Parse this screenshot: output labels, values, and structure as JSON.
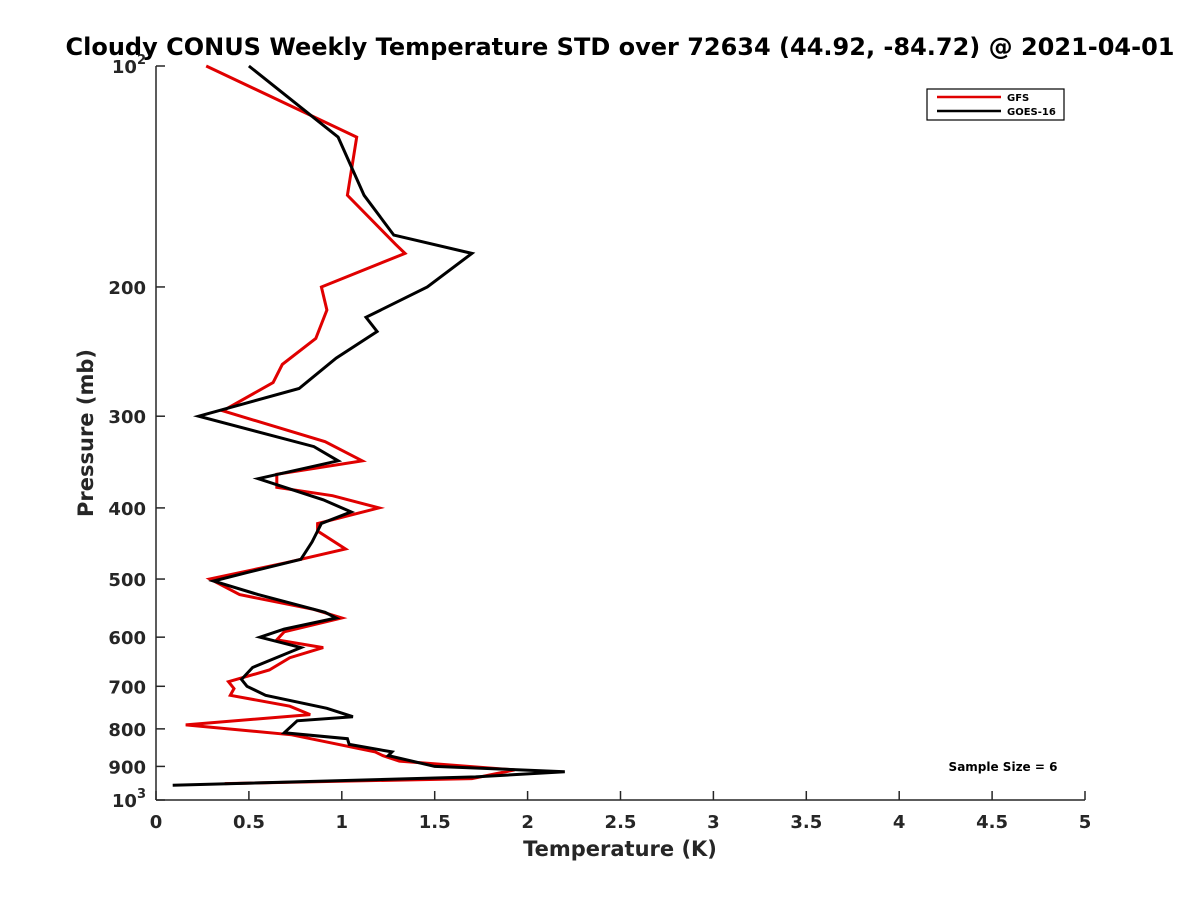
{
  "chart_data": {
    "type": "line",
    "title": "Cloudy CONUS Weekly Temperature STD over 72634 (44.92, -84.72) @ 2021-04-01",
    "xlabel": "Temperature (K)",
    "ylabel": "Pressure (mb)",
    "xlim": [
      0,
      5
    ],
    "ylim": [
      100,
      1000
    ],
    "y_scale": "log",
    "y_reversed": true,
    "grid": false,
    "legend_position": "top-right",
    "x_ticks": [
      {
        "value": 0,
        "label": "0"
      },
      {
        "value": 0.5,
        "label": "0.5"
      },
      {
        "value": 1,
        "label": "1"
      },
      {
        "value": 1.5,
        "label": "1.5"
      },
      {
        "value": 2,
        "label": "2"
      },
      {
        "value": 2.5,
        "label": "2.5"
      },
      {
        "value": 3,
        "label": "3"
      },
      {
        "value": 3.5,
        "label": "3.5"
      },
      {
        "value": 4,
        "label": "4"
      },
      {
        "value": 4.5,
        "label": "4.5"
      },
      {
        "value": 5,
        "label": "5"
      }
    ],
    "y_ticks": [
      {
        "value": 100,
        "base": "10",
        "exp": "2"
      },
      {
        "value": 200,
        "label": "200"
      },
      {
        "value": 300,
        "label": "300"
      },
      {
        "value": 400,
        "label": "400"
      },
      {
        "value": 500,
        "label": "500"
      },
      {
        "value": 600,
        "label": "600"
      },
      {
        "value": 700,
        "label": "700"
      },
      {
        "value": 800,
        "label": "800"
      },
      {
        "value": 900,
        "label": "900"
      },
      {
        "value": 1000,
        "base": "10",
        "exp": "3"
      }
    ],
    "series": [
      {
        "name": "GFS",
        "color": "#e00000",
        "points": [
          [
            0.27,
            100
          ],
          [
            1.08,
            125
          ],
          [
            1.03,
            150
          ],
          [
            1.29,
            175
          ],
          [
            1.34,
            180
          ],
          [
            0.89,
            200
          ],
          [
            0.92,
            215
          ],
          [
            0.86,
            235
          ],
          [
            0.68,
            255
          ],
          [
            0.63,
            270
          ],
          [
            0.36,
            295
          ],
          [
            0.91,
            325
          ],
          [
            1.11,
            345
          ],
          [
            0.65,
            360
          ],
          [
            0.65,
            375
          ],
          [
            0.95,
            385
          ],
          [
            1.2,
            400
          ],
          [
            0.87,
            420
          ],
          [
            0.87,
            430
          ],
          [
            1.02,
            455
          ],
          [
            0.7,
            475
          ],
          [
            0.29,
            500
          ],
          [
            0.45,
            525
          ],
          [
            0.85,
            550
          ],
          [
            1.0,
            565
          ],
          [
            0.69,
            590
          ],
          [
            0.65,
            605
          ],
          [
            0.9,
            620
          ],
          [
            0.72,
            640
          ],
          [
            0.61,
            665
          ],
          [
            0.39,
            690
          ],
          [
            0.42,
            705
          ],
          [
            0.4,
            720
          ],
          [
            0.72,
            745
          ],
          [
            0.83,
            765
          ],
          [
            0.16,
            790
          ],
          [
            0.73,
            815
          ],
          [
            1.18,
            860
          ],
          [
            1.22,
            870
          ],
          [
            1.31,
            885
          ],
          [
            1.93,
            910
          ],
          [
            1.7,
            935
          ],
          [
            0.37,
            950
          ]
        ]
      },
      {
        "name": "GOES-16",
        "color": "#000000",
        "points": [
          [
            0.5,
            100
          ],
          [
            0.98,
            125
          ],
          [
            1.12,
            150
          ],
          [
            1.28,
            170
          ],
          [
            1.7,
            180
          ],
          [
            1.46,
            200
          ],
          [
            1.13,
            220
          ],
          [
            1.19,
            230
          ],
          [
            0.97,
            250
          ],
          [
            0.77,
            275
          ],
          [
            0.23,
            300
          ],
          [
            0.85,
            330
          ],
          [
            0.98,
            345
          ],
          [
            0.55,
            365
          ],
          [
            0.9,
            390
          ],
          [
            1.05,
            405
          ],
          [
            0.89,
            420
          ],
          [
            0.84,
            445
          ],
          [
            0.78,
            470
          ],
          [
            0.49,
            490
          ],
          [
            0.31,
            503
          ],
          [
            0.55,
            525
          ],
          [
            0.91,
            555
          ],
          [
            0.97,
            565
          ],
          [
            0.69,
            585
          ],
          [
            0.56,
            600
          ],
          [
            0.78,
            620
          ],
          [
            0.52,
            660
          ],
          [
            0.46,
            685
          ],
          [
            0.49,
            700
          ],
          [
            0.59,
            720
          ],
          [
            0.92,
            750
          ],
          [
            1.06,
            770
          ],
          [
            0.76,
            780
          ],
          [
            0.69,
            810
          ],
          [
            1.03,
            825
          ],
          [
            1.04,
            840
          ],
          [
            1.27,
            860
          ],
          [
            1.25,
            870
          ],
          [
            1.5,
            900
          ],
          [
            2.2,
            915
          ],
          [
            1.72,
            930
          ],
          [
            0.09,
            955
          ]
        ]
      }
    ],
    "legend": [
      {
        "name": "GFS",
        "color": "#e00000"
      },
      {
        "name": "GOES-16",
        "color": "#000000"
      }
    ],
    "annotations": [
      {
        "text": "Sample Size = 6",
        "position": "lower-right"
      }
    ]
  }
}
